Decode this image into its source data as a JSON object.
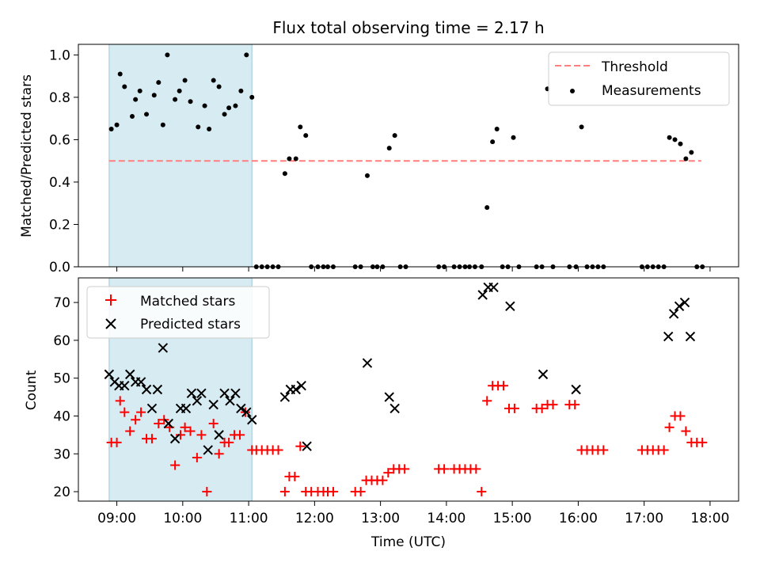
{
  "chart_data": [
    {
      "type": "scatter",
      "title": "Flux total observing time = 2.17 h",
      "xlabel": "",
      "ylabel": "Matched/Predicted stars",
      "ylim": [
        0,
        1.05
      ],
      "yticks": [
        "0.0",
        "0.2",
        "0.4",
        "0.6",
        "0.8",
        "1.0"
      ],
      "shaded_interval": [
        "08:53",
        "11:03"
      ],
      "threshold": {
        "name": "Threshold",
        "value": 0.5,
        "x_range": [
          "08:53",
          "17:52"
        ],
        "color": "#ff7f7f",
        "style": "dashed"
      },
      "legend": {
        "placement": "top-right",
        "entries": [
          "Threshold",
          "Measurements"
        ]
      },
      "series": [
        {
          "name": "Measurements",
          "marker": "dot",
          "color": "#000000",
          "points": [
            [
              "08:55",
              0.65
            ],
            [
              "09:00",
              0.67
            ],
            [
              "09:03",
              0.91
            ],
            [
              "09:07",
              0.85
            ],
            [
              "09:14",
              0.71
            ],
            [
              "09:17",
              0.79
            ],
            [
              "09:21",
              0.83
            ],
            [
              "09:27",
              0.72
            ],
            [
              "09:34",
              0.81
            ],
            [
              "09:38",
              0.87
            ],
            [
              "09:42",
              0.67
            ],
            [
              "09:46",
              1.0
            ],
            [
              "09:53",
              0.79
            ],
            [
              "09:57",
              0.83
            ],
            [
              "10:02",
              0.88
            ],
            [
              "10:07",
              0.78
            ],
            [
              "10:14",
              0.66
            ],
            [
              "10:20",
              0.76
            ],
            [
              "10:24",
              0.65
            ],
            [
              "10:28",
              0.88
            ],
            [
              "10:33",
              0.85
            ],
            [
              "10:38",
              0.72
            ],
            [
              "10:42",
              0.75
            ],
            [
              "10:48",
              0.76
            ],
            [
              "10:53",
              0.83
            ],
            [
              "10:58",
              1.0
            ],
            [
              "11:03",
              0.8
            ],
            [
              "11:07",
              0.0
            ],
            [
              "11:12",
              0.0
            ],
            [
              "11:17",
              0.0
            ],
            [
              "11:22",
              0.0
            ],
            [
              "11:27",
              0.0
            ],
            [
              "11:33",
              0.44
            ],
            [
              "11:37",
              0.51
            ],
            [
              "11:43",
              0.51
            ],
            [
              "11:47",
              0.66
            ],
            [
              "11:52",
              0.62
            ],
            [
              "11:57",
              0.0
            ],
            [
              "12:03",
              0.0
            ],
            [
              "12:08",
              0.0
            ],
            [
              "12:12",
              0.0
            ],
            [
              "12:17",
              0.0
            ],
            [
              "12:37",
              0.0
            ],
            [
              "12:42",
              0.0
            ],
            [
              "12:48",
              0.43
            ],
            [
              "12:53",
              0.0
            ],
            [
              "12:57",
              0.0
            ],
            [
              "13:02",
              0.0
            ],
            [
              "13:08",
              0.56
            ],
            [
              "13:13",
              0.62
            ],
            [
              "13:18",
              0.0
            ],
            [
              "13:23",
              0.0
            ],
            [
              "13:53",
              0.0
            ],
            [
              "13:58",
              0.0
            ],
            [
              "14:07",
              0.0
            ],
            [
              "14:12",
              0.0
            ],
            [
              "14:17",
              0.0
            ],
            [
              "14:21",
              0.0
            ],
            [
              "14:26",
              0.0
            ],
            [
              "14:32",
              0.0
            ],
            [
              "14:37",
              0.28
            ],
            [
              "14:42",
              0.59
            ],
            [
              "14:46",
              0.65
            ],
            [
              "14:51",
              0.0
            ],
            [
              "14:56",
              0.0
            ],
            [
              "15:01",
              0.61
            ],
            [
              "15:06",
              0.0
            ],
            [
              "15:22",
              0.0
            ],
            [
              "15:27",
              0.0
            ],
            [
              "15:32",
              0.84
            ],
            [
              "15:37",
              0.0
            ],
            [
              "15:52",
              0.0
            ],
            [
              "15:58",
              0.0
            ],
            [
              "16:03",
              0.66
            ],
            [
              "16:08",
              0.0
            ],
            [
              "16:13",
              0.0
            ],
            [
              "16:18",
              0.0
            ],
            [
              "16:23",
              0.0
            ],
            [
              "16:58",
              0.0
            ],
            [
              "17:03",
              0.0
            ],
            [
              "17:08",
              0.0
            ],
            [
              "17:13",
              0.0
            ],
            [
              "17:18",
              0.0
            ],
            [
              "17:23",
              0.61
            ],
            [
              "17:28",
              0.6
            ],
            [
              "17:33",
              0.58
            ],
            [
              "17:38",
              0.51
            ],
            [
              "17:43",
              0.54
            ],
            [
              "17:48",
              0.0
            ],
            [
              "17:53",
              0.0
            ]
          ]
        }
      ]
    },
    {
      "type": "scatter",
      "title": "",
      "xlabel": "Time (UTC)",
      "ylabel": "Count",
      "ylim": [
        17.5,
        76.5
      ],
      "yticks": [
        "20",
        "30",
        "40",
        "50",
        "60",
        "70"
      ],
      "xticks": [
        "09:00",
        "10:00",
        "11:00",
        "12:00",
        "13:00",
        "14:00",
        "15:00",
        "16:00",
        "17:00",
        "18:00"
      ],
      "shaded_interval": [
        "08:53",
        "11:03"
      ],
      "legend": {
        "placement": "top-left",
        "entries": [
          "Matched stars",
          "Predicted stars"
        ]
      },
      "series": [
        {
          "name": "Matched stars",
          "marker": "plus",
          "color": "#ff0000",
          "points": [
            [
              "08:55",
              33
            ],
            [
              "09:00",
              33
            ],
            [
              "09:03",
              44
            ],
            [
              "09:07",
              41
            ],
            [
              "09:12",
              36
            ],
            [
              "09:17",
              39
            ],
            [
              "09:22",
              41
            ],
            [
              "09:27",
              34
            ],
            [
              "09:32",
              34
            ],
            [
              "09:38",
              38
            ],
            [
              "09:43",
              39
            ],
            [
              "09:48",
              37
            ],
            [
              "09:53",
              27
            ],
            [
              "09:58",
              35
            ],
            [
              "10:02",
              37
            ],
            [
              "10:07",
              36
            ],
            [
              "10:13",
              29
            ],
            [
              "10:17",
              35
            ],
            [
              "10:22",
              20
            ],
            [
              "10:28",
              38
            ],
            [
              "10:33",
              30
            ],
            [
              "10:38",
              33
            ],
            [
              "10:42",
              33
            ],
            [
              "10:47",
              35
            ],
            [
              "10:52",
              35
            ],
            [
              "10:57",
              41
            ],
            [
              "11:03",
              31
            ],
            [
              "11:07",
              31
            ],
            [
              "11:12",
              31
            ],
            [
              "11:17",
              31
            ],
            [
              "11:22",
              31
            ],
            [
              "11:27",
              31
            ],
            [
              "11:33",
              20
            ],
            [
              "11:37",
              24
            ],
            [
              "11:42",
              24
            ],
            [
              "11:47",
              32
            ],
            [
              "11:52",
              20
            ],
            [
              "11:57",
              20
            ],
            [
              "12:03",
              20
            ],
            [
              "12:08",
              20
            ],
            [
              "12:12",
              20
            ],
            [
              "12:17",
              20
            ],
            [
              "12:37",
              20
            ],
            [
              "12:42",
              20
            ],
            [
              "12:47",
              23
            ],
            [
              "12:52",
              23
            ],
            [
              "12:57",
              23
            ],
            [
              "13:02",
              23
            ],
            [
              "13:07",
              25
            ],
            [
              "13:12",
              26
            ],
            [
              "13:17",
              26
            ],
            [
              "13:22",
              26
            ],
            [
              "13:53",
              26
            ],
            [
              "13:58",
              26
            ],
            [
              "14:07",
              26
            ],
            [
              "14:12",
              26
            ],
            [
              "14:17",
              26
            ],
            [
              "14:22",
              26
            ],
            [
              "14:27",
              26
            ],
            [
              "14:32",
              20
            ],
            [
              "14:37",
              44
            ],
            [
              "14:42",
              48
            ],
            [
              "14:47",
              48
            ],
            [
              "14:52",
              48
            ],
            [
              "14:57",
              42
            ],
            [
              "15:02",
              42
            ],
            [
              "15:22",
              42
            ],
            [
              "15:27",
              42
            ],
            [
              "15:32",
              43
            ],
            [
              "15:37",
              43
            ],
            [
              "15:52",
              43
            ],
            [
              "15:57",
              43
            ],
            [
              "16:03",
              31
            ],
            [
              "16:08",
              31
            ],
            [
              "16:13",
              31
            ],
            [
              "16:18",
              31
            ],
            [
              "16:23",
              31
            ],
            [
              "16:58",
              31
            ],
            [
              "17:03",
              31
            ],
            [
              "17:08",
              31
            ],
            [
              "17:13",
              31
            ],
            [
              "17:18",
              31
            ],
            [
              "17:23",
              37
            ],
            [
              "17:28",
              40
            ],
            [
              "17:33",
              40
            ],
            [
              "17:38",
              36
            ],
            [
              "17:43",
              33
            ],
            [
              "17:48",
              33
            ],
            [
              "17:53",
              33
            ]
          ]
        },
        {
          "name": "Predicted stars",
          "marker": "x",
          "color": "#000000",
          "points": [
            [
              "08:53",
              51
            ],
            [
              "08:58",
              49
            ],
            [
              "09:02",
              48
            ],
            [
              "09:07",
              48
            ],
            [
              "09:12",
              51
            ],
            [
              "09:17",
              49
            ],
            [
              "09:22",
              49
            ],
            [
              "09:27",
              47
            ],
            [
              "09:32",
              42
            ],
            [
              "09:37",
              47
            ],
            [
              "09:42",
              58
            ],
            [
              "09:47",
              38
            ],
            [
              "09:53",
              34
            ],
            [
              "09:58",
              42
            ],
            [
              "10:03",
              42
            ],
            [
              "10:08",
              46
            ],
            [
              "10:13",
              44
            ],
            [
              "10:17",
              46
            ],
            [
              "10:23",
              31
            ],
            [
              "10:28",
              43
            ],
            [
              "10:33",
              35
            ],
            [
              "10:38",
              46
            ],
            [
              "10:43",
              44
            ],
            [
              "10:48",
              46
            ],
            [
              "10:53",
              42
            ],
            [
              "10:58",
              41
            ],
            [
              "11:03",
              39
            ],
            [
              "11:33",
              45
            ],
            [
              "11:38",
              47
            ],
            [
              "11:43",
              47
            ],
            [
              "11:48",
              48
            ],
            [
              "11:53",
              32
            ],
            [
              "12:48",
              54
            ],
            [
              "13:08",
              45
            ],
            [
              "13:13",
              42
            ],
            [
              "14:33",
              72
            ],
            [
              "14:38",
              74
            ],
            [
              "14:43",
              74
            ],
            [
              "14:58",
              69
            ],
            [
              "15:28",
              51
            ],
            [
              "15:58",
              47
            ],
            [
              "17:22",
              61
            ],
            [
              "17:27",
              67
            ],
            [
              "17:32",
              69
            ],
            [
              "17:37",
              70
            ],
            [
              "17:42",
              61
            ]
          ]
        }
      ]
    }
  ]
}
